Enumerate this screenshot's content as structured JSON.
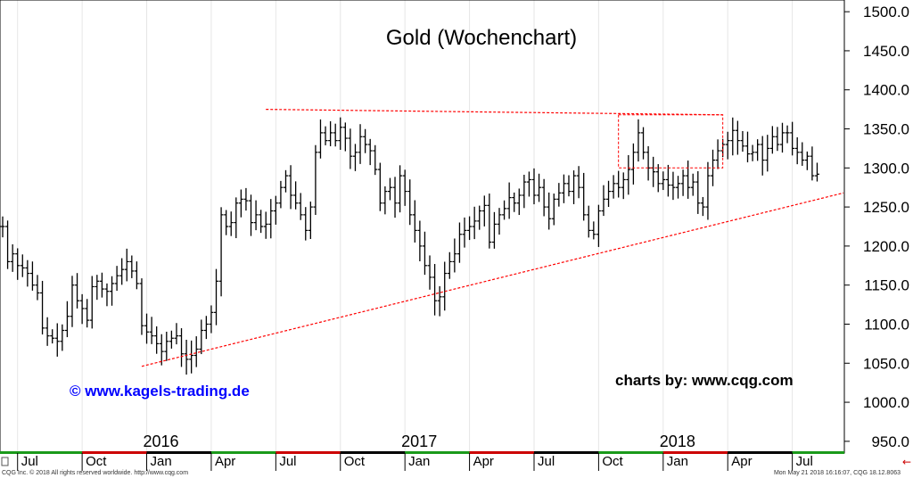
{
  "chart_data": {
    "type": "ohlc",
    "title": "Gold (Wochenchart)",
    "ylim": [
      935,
      1515
    ],
    "y_ticks": [
      950,
      1000,
      1050,
      1100,
      1150,
      1200,
      1250,
      1300,
      1350,
      1400,
      1450,
      1500
    ],
    "y_tick_labels": [
      "950.0",
      "1000.0",
      "1050.0",
      "1100.0",
      "1150.0",
      "1200.0",
      "1250.0",
      "1300.0",
      "1350.0",
      "1400.0",
      "1450.0",
      "1500.0"
    ],
    "x_tick_labels": [
      "Jul",
      "Oct",
      "Jan",
      "Apr",
      "Jul",
      "Oct",
      "Jan",
      "Apr",
      "Jul",
      "Oct",
      "Jan",
      "Apr",
      "Jul"
    ],
    "x_tick_weeks": [
      3,
      16,
      29,
      42,
      55,
      68,
      81,
      94,
      107,
      120,
      133,
      146,
      159
    ],
    "year_labels": [
      {
        "label": "2016",
        "week": 29
      },
      {
        "label": "2017",
        "week": 81
      },
      {
        "label": "2018",
        "week": 133
      }
    ],
    "series": [
      {
        "close": [
          1225,
          1180,
          1190,
          1175,
          1172,
          1165,
          1150,
          1140,
          1095,
          1085,
          1082,
          1078,
          1092,
          1110,
          1150,
          1130,
          1120,
          1105,
          1148,
          1155,
          1145,
          1142,
          1152,
          1162,
          1170,
          1180,
          1168,
          1152,
          1098,
          1090,
          1085,
          1075,
          1065,
          1078,
          1082,
          1085,
          1062,
          1055,
          1060,
          1068,
          1092,
          1100,
          1115,
          1155,
          1240,
          1225,
          1230,
          1255,
          1260,
          1258,
          1230,
          1240,
          1225,
          1228,
          1245,
          1255,
          1275,
          1290,
          1265,
          1255,
          1240,
          1220,
          1250,
          1320,
          1345,
          1335,
          1345,
          1335,
          1352,
          1338,
          1315,
          1320,
          1340,
          1330,
          1322,
          1298,
          1255,
          1270,
          1275,
          1255,
          1290,
          1270,
          1240,
          1220,
          1200,
          1175,
          1160,
          1130,
          1135,
          1165,
          1180,
          1190,
          1215,
          1220,
          1225,
          1232,
          1245,
          1252,
          1205,
          1228,
          1240,
          1248,
          1262,
          1255,
          1265,
          1282,
          1285,
          1265,
          1275,
          1250,
          1235,
          1260,
          1268,
          1280,
          1270,
          1290,
          1275,
          1240,
          1220,
          1215,
          1245,
          1260,
          1270,
          1280,
          1275,
          1285,
          1298,
          1320,
          1345,
          1320,
          1300,
          1295,
          1280,
          1285,
          1278,
          1275,
          1280,
          1290,
          1275,
          1282,
          1255,
          1250,
          1290,
          1310,
          1322,
          1330,
          1335,
          1348,
          1335,
          1328,
          1318,
          1320,
          1330,
          1310,
          1325,
          1340,
          1330,
          1345,
          1345,
          1325,
          1320,
          1310,
          1315,
          1290,
          1292
        ]
      }
    ],
    "trendlines": [
      {
        "kind": "line",
        "from": {
          "week": 28,
          "value": 1046
        },
        "to": {
          "week": 176,
          "value": 1268
        }
      },
      {
        "kind": "line",
        "from": {
          "week": 53,
          "value": 1375
        },
        "to": {
          "week": 145,
          "value": 1368
        }
      },
      {
        "kind": "box",
        "from": {
          "week": 124,
          "value": 1300
        },
        "to": {
          "week": 145,
          "value": 1368
        }
      }
    ],
    "watermark": "© www.kagels-trading.de",
    "credit": "charts by: www.cqg.com",
    "footer_left": "CQG Inc. © 2018 All rights reserved worldwide. http://www.cqg.com",
    "footer_right": "Mon May 21 2018 16:16:07, CQG 18.12.8063",
    "colors": {
      "bars": "#000000",
      "trendline": "#ff0000",
      "watermark": "#0000ff",
      "credit": "#000000"
    }
  }
}
